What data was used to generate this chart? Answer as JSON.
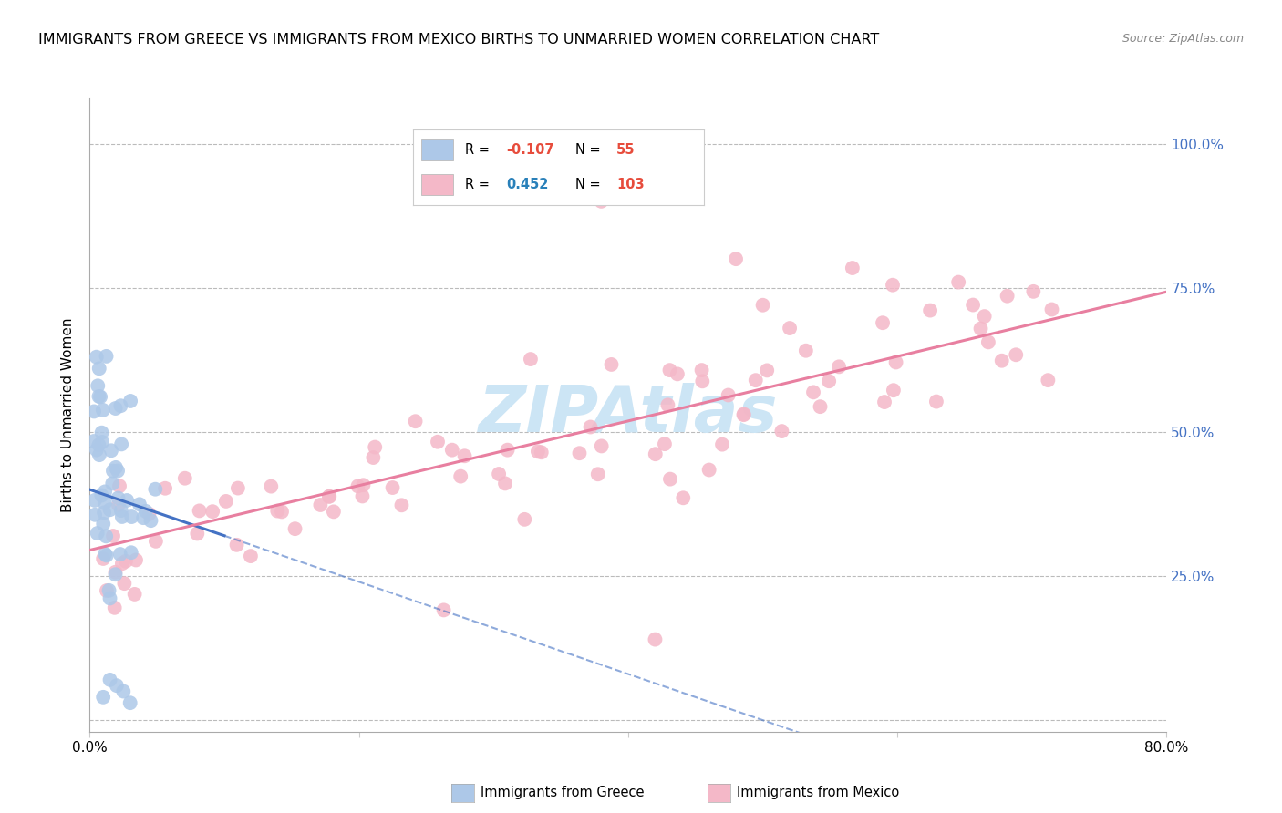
{
  "title": "IMMIGRANTS FROM GREECE VS IMMIGRANTS FROM MEXICO BIRTHS TO UNMARRIED WOMEN CORRELATION CHART",
  "source": "Source: ZipAtlas.com",
  "ylabel": "Births to Unmarried Women",
  "watermark": "ZIPAtlas",
  "xmin": 0.0,
  "xmax": 0.8,
  "ymin": -0.02,
  "ymax": 1.08,
  "yticks": [
    0.0,
    0.25,
    0.5,
    0.75,
    1.0
  ],
  "ytick_labels": [
    "",
    "25.0%",
    "50.0%",
    "75.0%",
    "100.0%"
  ],
  "xticks": [
    0.0,
    0.2,
    0.4,
    0.6,
    0.8
  ],
  "xtick_labels": [
    "0.0%",
    "",
    "",
    "",
    "80.0%"
  ],
  "legend_entries": [
    {
      "label": "Immigrants from Greece",
      "color": "#adc8e8",
      "R": "-0.107",
      "N": "55",
      "R_color": "#e74c3c",
      "N_color": "#e74c3c"
    },
    {
      "label": "Immigrants from Mexico",
      "color": "#f4b8c8",
      "R": "0.452",
      "N": "103",
      "R_color": "#2980b9",
      "N_color": "#e74c3c"
    }
  ],
  "greece_line_color": "#4472c4",
  "mexico_line_color": "#e87fa0",
  "grid_color": "#bbbbbb",
  "background_color": "#ffffff",
  "title_fontsize": 11.5,
  "axis_label_fontsize": 11,
  "tick_fontsize": 11,
  "watermark_color": "#cce5f5"
}
